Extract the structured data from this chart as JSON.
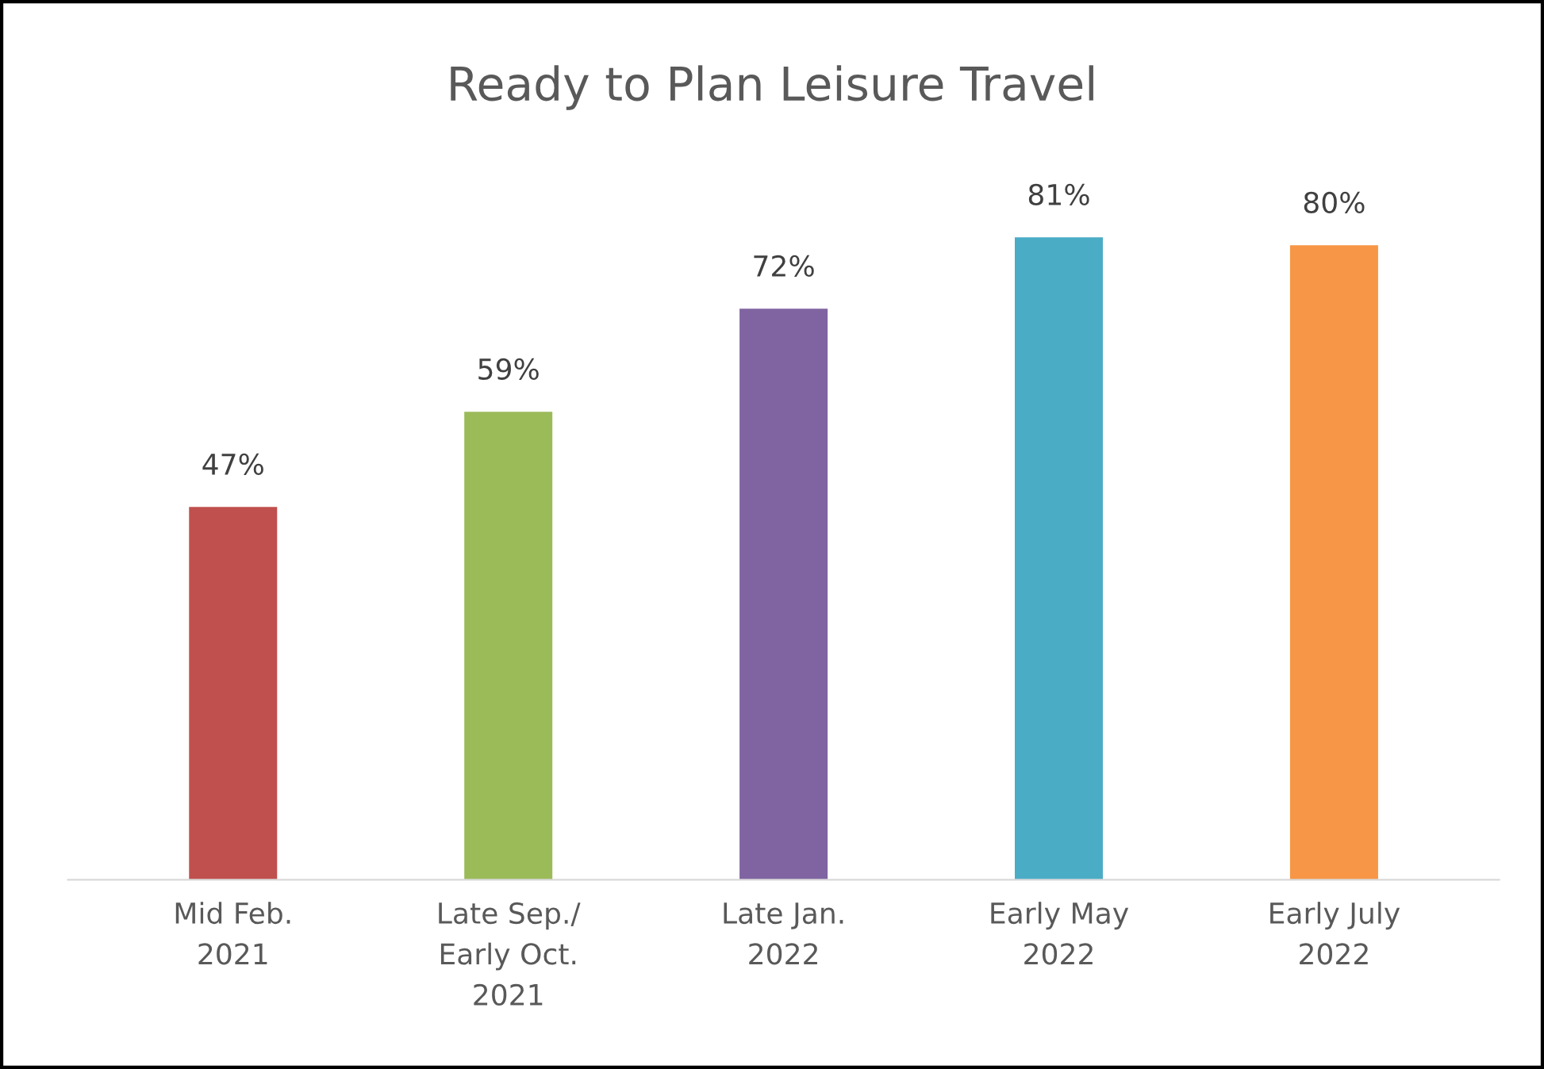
{
  "chart_data": {
    "type": "bar",
    "title": "Ready to Plan Leisure Travel",
    "categories": [
      "Mid Feb.\n2021",
      "Late Sep./\nEarly Oct.\n2021",
      "Late Jan.\n2022",
      "Early May\n2022",
      "Early July\n2022"
    ],
    "values": [
      47,
      59,
      72,
      81,
      80
    ],
    "colors": [
      "#c0504d",
      "#9bbb59",
      "#8064a2",
      "#4bacc6",
      "#f79646"
    ],
    "value_labels": [
      "47%",
      "59%",
      "72%",
      "81%",
      "80%"
    ]
  }
}
